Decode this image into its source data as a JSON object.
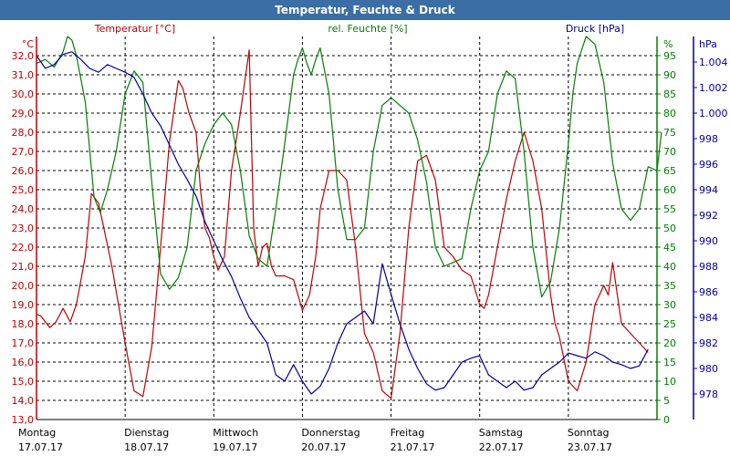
{
  "window": {
    "title": "Temperatur, Feuchte & Druck"
  },
  "colors": {
    "temperature": "#c00000",
    "humidity": "#008000",
    "pressure": "#0000a0",
    "titlebar": "#3a6ea5"
  },
  "chart_data": {
    "type": "line",
    "title": "Temperatur, Feuchte & Druck",
    "grid": true,
    "x_days": [
      {
        "day": "Montag",
        "date": "17.07.17"
      },
      {
        "day": "Dienstag",
        "date": "18.07.17"
      },
      {
        "day": "Mittwoch",
        "date": "19.07.17"
      },
      {
        "day": "Donnerstag",
        "date": "20.07.17"
      },
      {
        "day": "Freitag",
        "date": "21.07.17"
      },
      {
        "day": "Samstag",
        "date": "22.07.17"
      },
      {
        "day": "Sonntag",
        "date": "23.07.17"
      }
    ],
    "axes": {
      "temperature": {
        "label": "Temperatur [°C]",
        "unit": "°C",
        "range": [
          13,
          33
        ],
        "ticks": [
          "13,0",
          "14,0",
          "15,0",
          "16,0",
          "17,0",
          "18,0",
          "19,0",
          "20,0",
          "21,0",
          "22,0",
          "23,0",
          "24,0",
          "25,0",
          "26,0",
          "27,0",
          "28,0",
          "29,0",
          "30,0",
          "31,0",
          "32,0"
        ]
      },
      "humidity": {
        "label": "rel. Feuchte [%]",
        "unit": "%",
        "range": [
          0,
          100
        ],
        "ticks": [
          "0",
          "5",
          "10",
          "15",
          "20",
          "25",
          "30",
          "35",
          "40",
          "45",
          "50",
          "55",
          "60",
          "65",
          "70",
          "75",
          "80",
          "85",
          "90",
          "95"
        ]
      },
      "pressure": {
        "label": "Druck [hPa]",
        "unit": "hPa",
        "range": [
          976,
          1006
        ],
        "ticks": [
          "978",
          "980",
          "982",
          "984",
          "986",
          "988",
          "990",
          "992",
          "994",
          "996",
          "998",
          "1.000",
          "1.002",
          "1.004"
        ]
      }
    },
    "series": [
      {
        "name": "Temperatur [°C]",
        "axis": "temperature",
        "x": [
          0,
          0.05,
          0.15,
          0.22,
          0.3,
          0.38,
          0.45,
          0.55,
          0.62,
          0.7,
          0.85,
          1.0,
          1.1,
          1.2,
          1.3,
          1.4,
          1.5,
          1.6,
          1.65,
          1.72,
          1.8,
          1.85,
          1.9,
          1.95,
          2.0,
          2.05,
          2.12,
          2.2,
          2.3,
          2.4,
          2.45,
          2.5,
          2.55,
          2.6,
          2.65,
          2.7,
          2.8,
          2.9,
          3.0,
          3.08,
          3.15,
          3.2,
          3.3,
          3.4,
          3.5,
          3.6,
          3.7,
          3.8,
          3.9,
          4.0,
          4.1,
          4.2,
          4.3,
          4.4,
          4.5,
          4.6,
          4.7,
          4.8,
          4.9,
          5.0,
          5.05,
          5.1,
          5.2,
          5.3,
          5.4,
          5.5,
          5.6,
          5.7,
          5.8,
          5.85,
          5.9,
          6.0,
          6.1,
          6.2,
          6.3,
          6.35,
          6.4,
          6.45,
          6.5,
          6.6,
          6.7,
          6.8,
          6.9
        ],
        "values": [
          18.5,
          18.4,
          17.8,
          18.1,
          18.8,
          18.1,
          19.0,
          21.5,
          24.8,
          24.3,
          21.0,
          17.0,
          14.5,
          14.2,
          16.8,
          22.0,
          27.5,
          30.7,
          30.3,
          29.0,
          28.0,
          25.0,
          23.0,
          22.5,
          21.5,
          20.8,
          21.5,
          26.0,
          29.0,
          32.3,
          23.0,
          21.0,
          22.0,
          22.2,
          21.0,
          20.5,
          20.5,
          20.3,
          18.7,
          19.5,
          21.5,
          24.0,
          26.0,
          26.0,
          25.5,
          22.0,
          17.5,
          16.5,
          14.5,
          14.1,
          17.5,
          23.0,
          26.5,
          26.8,
          25.5,
          22.0,
          21.5,
          20.8,
          20.5,
          19.0,
          18.8,
          19.5,
          22.0,
          24.5,
          26.5,
          28.0,
          26.5,
          24.0,
          19.5,
          18.0,
          17.3,
          15.0,
          14.5,
          16.0,
          19.0,
          19.5,
          20.0,
          19.5,
          21.2,
          18.0,
          17.5,
          17.0,
          16.5
        ]
      },
      {
        "name": "rel. Feuchte [%]",
        "axis": "humidity",
        "x": [
          0,
          0.1,
          0.2,
          0.3,
          0.35,
          0.4,
          0.45,
          0.55,
          0.65,
          0.72,
          0.8,
          0.9,
          1.0,
          1.1,
          1.2,
          1.3,
          1.4,
          1.5,
          1.6,
          1.7,
          1.8,
          1.9,
          2.0,
          2.1,
          2.2,
          2.3,
          2.4,
          2.5,
          2.6,
          2.7,
          2.8,
          2.9,
          2.95,
          3.0,
          3.05,
          3.1,
          3.15,
          3.2,
          3.3,
          3.4,
          3.5,
          3.6,
          3.7,
          3.8,
          3.9,
          4.0,
          4.1,
          4.2,
          4.3,
          4.4,
          4.5,
          4.6,
          4.7,
          4.8,
          4.9,
          5.0,
          5.1,
          5.2,
          5.3,
          5.4,
          5.5,
          5.6,
          5.7,
          5.8,
          5.9,
          6.0,
          6.05,
          6.1,
          6.2,
          6.3,
          6.4,
          6.5,
          6.6,
          6.7,
          6.8,
          6.9,
          7.0,
          7.05
        ],
        "values": [
          93,
          94,
          92,
          96,
          100,
          99,
          95,
          83,
          58,
          54,
          60,
          70,
          85,
          91,
          88,
          62,
          38,
          34,
          37,
          45,
          65,
          72,
          77,
          80,
          77,
          65,
          48,
          42,
          40,
          55,
          72,
          90,
          94,
          97,
          93,
          90,
          94,
          97,
          85,
          60,
          47,
          47,
          50,
          70,
          82,
          84,
          82,
          80,
          73,
          62,
          45,
          40,
          41,
          42,
          55,
          65,
          70,
          85,
          91,
          89,
          70,
          45,
          32,
          36,
          50,
          72,
          85,
          93,
          100,
          98,
          88,
          67,
          55,
          52,
          55,
          66,
          65,
          75
        ]
      },
      {
        "name": "Druck [hPa]",
        "axis": "pressure",
        "x": [
          0,
          0.1,
          0.2,
          0.3,
          0.4,
          0.5,
          0.6,
          0.7,
          0.8,
          0.9,
          1.0,
          1.1,
          1.2,
          1.3,
          1.4,
          1.5,
          1.6,
          1.7,
          1.8,
          1.9,
          2.0,
          2.1,
          2.2,
          2.3,
          2.4,
          2.5,
          2.6,
          2.7,
          2.8,
          2.9,
          3.0,
          3.1,
          3.2,
          3.3,
          3.4,
          3.5,
          3.6,
          3.7,
          3.8,
          3.9,
          4.0,
          4.1,
          4.2,
          4.3,
          4.4,
          4.5,
          4.6,
          4.7,
          4.8,
          4.9,
          5.0,
          5.1,
          5.2,
          5.3,
          5.4,
          5.5,
          5.6,
          5.7,
          5.8,
          5.9,
          6.0,
          6.1,
          6.2,
          6.3,
          6.4,
          6.5,
          6.6,
          6.7,
          6.8,
          6.9
        ],
        "values": [
          1004.5,
          1003.5,
          1003.8,
          1004.6,
          1004.8,
          1004.2,
          1003.5,
          1003.2,
          1003.8,
          1003.5,
          1003.2,
          1002.8,
          1001.5,
          1000.0,
          999.0,
          997.5,
          996.0,
          994.8,
          993.5,
          991.5,
          990.0,
          988.5,
          987.2,
          985.5,
          984.0,
          983.0,
          982.0,
          979.5,
          979.0,
          980.3,
          979.0,
          978.0,
          978.6,
          980.0,
          982.0,
          983.5,
          984.0,
          984.5,
          983.5,
          988.2,
          985.8,
          983.5,
          981.5,
          980.0,
          978.8,
          978.3,
          978.5,
          979.5,
          980.5,
          980.8,
          981.0,
          979.5,
          979.0,
          978.5,
          979.0,
          978.3,
          978.5,
          979.5,
          980.0,
          980.5,
          981.2,
          981.0,
          980.8,
          981.3,
          981.0,
          980.5,
          980.3,
          980.0,
          980.2,
          981.5
        ]
      }
    ]
  }
}
